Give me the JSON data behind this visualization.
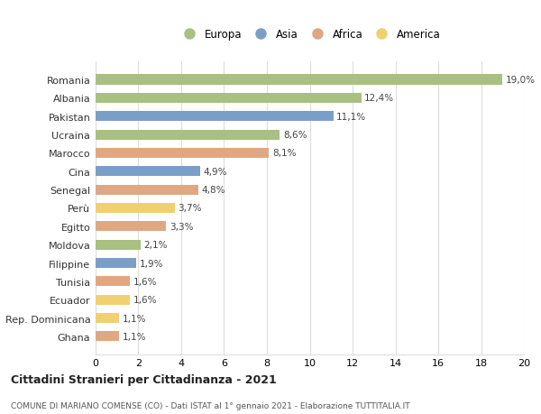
{
  "countries": [
    "Romania",
    "Albania",
    "Pakistan",
    "Ucraina",
    "Marocco",
    "Cina",
    "Senegal",
    "Perù",
    "Egitto",
    "Moldova",
    "Filippine",
    "Tunisia",
    "Ecuador",
    "Rep. Dominicana",
    "Ghana"
  ],
  "values": [
    19.0,
    12.4,
    11.1,
    8.6,
    8.1,
    4.9,
    4.8,
    3.7,
    3.3,
    2.1,
    1.9,
    1.6,
    1.6,
    1.1,
    1.1
  ],
  "labels": [
    "19,0%",
    "12,4%",
    "11,1%",
    "8,6%",
    "8,1%",
    "4,9%",
    "4,8%",
    "3,7%",
    "3,3%",
    "2,1%",
    "1,9%",
    "1,6%",
    "1,6%",
    "1,1%",
    "1,1%"
  ],
  "continents": [
    "Europa",
    "Europa",
    "Asia",
    "Europa",
    "Africa",
    "Asia",
    "Africa",
    "America",
    "Africa",
    "Europa",
    "Asia",
    "Africa",
    "America",
    "America",
    "Africa"
  ],
  "colors": {
    "Europa": "#a8c080",
    "Asia": "#7b9ec8",
    "Africa": "#dfa882",
    "America": "#f0d070"
  },
  "title": "Cittadini Stranieri per Cittadinanza - 2021",
  "subtitle": "COMUNE DI MARIANO COMENSE (CO) - Dati ISTAT al 1° gennaio 2021 - Elaborazione TUTTITALIA.IT",
  "xlim": [
    0,
    20
  ],
  "xticks": [
    0,
    2,
    4,
    6,
    8,
    10,
    12,
    14,
    16,
    18,
    20
  ],
  "background_color": "#ffffff",
  "grid_color": "#dddddd",
  "legend_labels": [
    "Europa",
    "Asia",
    "Africa",
    "America"
  ]
}
